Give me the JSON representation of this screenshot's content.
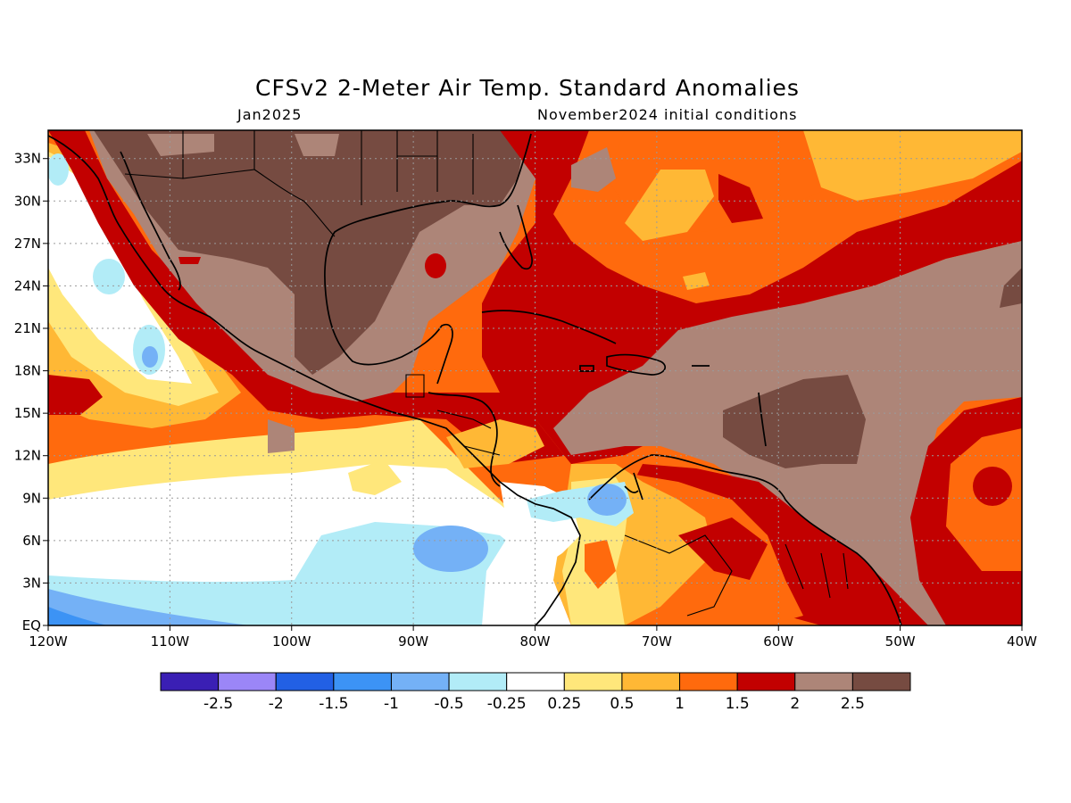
{
  "title": "CFSv2 2-Meter Air Temp. Standard Anomalies",
  "valid_month": "Jan2025",
  "initial_conditions": "November2024 initial conditions",
  "map": {
    "lon_range": [
      -120,
      -40
    ],
    "lat_range": [
      0,
      35
    ],
    "x_ticks": [
      {
        "lon": -120,
        "label": "120W"
      },
      {
        "lon": -110,
        "label": "110W"
      },
      {
        "lon": -100,
        "label": "100W"
      },
      {
        "lon": -90,
        "label": "90W"
      },
      {
        "lon": -80,
        "label": "80W"
      },
      {
        "lon": -70,
        "label": "70W"
      },
      {
        "lon": -60,
        "label": "60W"
      },
      {
        "lon": -50,
        "label": "50W"
      },
      {
        "lon": -40,
        "label": "40W"
      }
    ],
    "y_ticks": [
      {
        "lat": 0,
        "label": "EQ"
      },
      {
        "lat": 3,
        "label": "3N"
      },
      {
        "lat": 6,
        "label": "6N"
      },
      {
        "lat": 9,
        "label": "9N"
      },
      {
        "lat": 12,
        "label": "12N"
      },
      {
        "lat": 15,
        "label": "15N"
      },
      {
        "lat": 18,
        "label": "18N"
      },
      {
        "lat": 21,
        "label": "21N"
      },
      {
        "lat": 24,
        "label": "24N"
      },
      {
        "lat": 27,
        "label": "27N"
      },
      {
        "lat": 30,
        "label": "30N"
      },
      {
        "lat": 33,
        "label": "33N"
      }
    ],
    "grid": true
  },
  "colorbar": {
    "colors": [
      "#3a1fb4",
      "#9b86f7",
      "#2260e4",
      "#3c93f5",
      "#74b1f6",
      "#b2ecf7",
      "#ffffff",
      "#ffe77b",
      "#ffb835",
      "#ff6a0d",
      "#c20000",
      "#ad8578",
      "#764b41"
    ],
    "labels": [
      "-2.5",
      "-2",
      "-1.5",
      "-1",
      "-0.5",
      "-0.25",
      "0.25",
      "0.5",
      "1",
      "1.5",
      "2",
      "2.5"
    ]
  }
}
